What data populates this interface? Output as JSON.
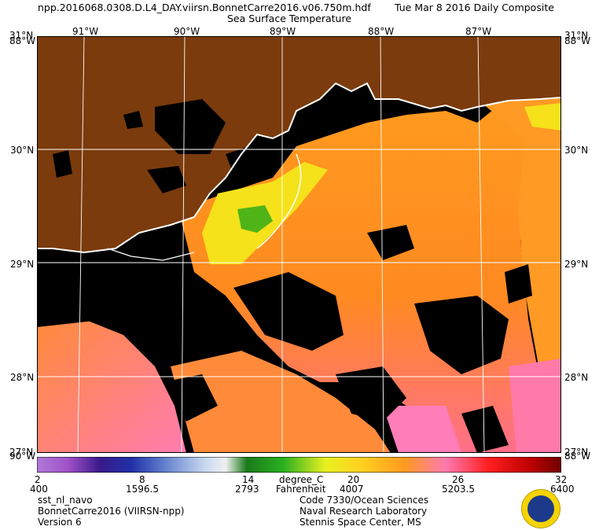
{
  "header": {
    "filename": "npp.2016068.0308.D.L4_DAY.viirsn.BonnetCarre2016.v06.750m.hdf",
    "date": "Tue Mar  8 2016 Daily Composite",
    "product": "Sea Surface Temperature"
  },
  "map": {
    "lon_labels": [
      "91°W",
      "90°W",
      "89°W",
      "88°W",
      "87°W"
    ],
    "lat_labels": [
      "30°N",
      "29°N",
      "28°N"
    ],
    "corner_top_left": "31°N",
    "corner_top_left_lon": "88°W",
    "corner_top_right": "31°N",
    "corner_top_right_lon": "88°W",
    "corner_bottom_left": "90°W",
    "corner_bottom_left_lat": "27°N",
    "corner_bottom_right": "88°W",
    "corner_bottom_right_lat": "27°N",
    "colors": {
      "land": "#7b3b0c",
      "nodata": "#000000",
      "coast": "#ffffff",
      "grid": "#ffffff",
      "sst_warm": "#ff9a1f",
      "sst_hot": "#ff6a1a",
      "sst_pink": "#ff7aa0",
      "sst_yellow": "#f5e21a",
      "sst_green": "#4fb417"
    }
  },
  "colorbar": {
    "ticks_c": [
      "2",
      "8",
      "14",
      "20",
      "26",
      "32"
    ],
    "ticks_f": [
      "400",
      "1596.5",
      "2793",
      "4007",
      "5203.5",
      "6400"
    ],
    "unit_c": "degree_C",
    "unit_f": "Fahrenheit"
  },
  "footer": {
    "left_1": "sst_nl_navo",
    "left_2": "BonnetCarre2016 (VIIRSN-npp)",
    "left_3": "Version 6",
    "right_1": "Code 7330/Ocean Sciences",
    "right_2": "Naval Research Laboratory",
    "right_3": "Stennis Space Center, MS"
  }
}
